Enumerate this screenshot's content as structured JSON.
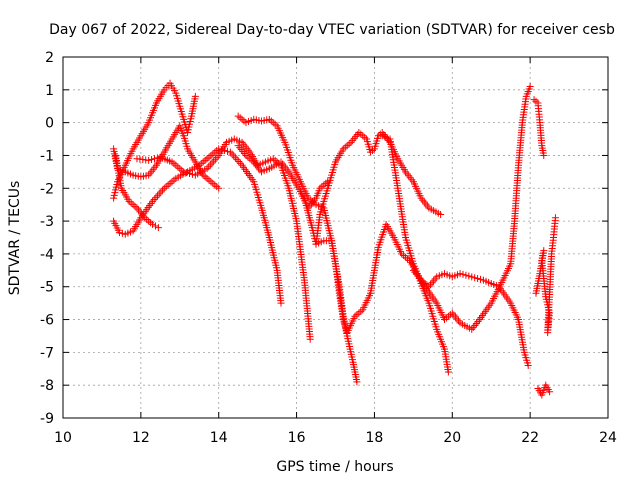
{
  "chart_data": {
    "type": "scatter",
    "title": "Day 067 of 2022, Sidereal Day-to-day VTEC variation (SDTVAR) for receiver cesb",
    "xlabel": "GPS time / hours",
    "ylabel": "SDTVAR / TECUs",
    "xlim": [
      10,
      24
    ],
    "ylim": [
      -9,
      2
    ],
    "xticks": [
      "10",
      "12",
      "14",
      "16",
      "18",
      "20",
      "22",
      "24"
    ],
    "yticks": [
      "2",
      "1",
      "0",
      "-1",
      "-2",
      "-3",
      "-4",
      "-5",
      "-6",
      "-7",
      "-8",
      "-9"
    ],
    "grid": true,
    "marker": "+",
    "color": "#ff0000",
    "series": [
      {
        "points": [
          [
            11.3,
            -2.3
          ],
          [
            11.4,
            -1.8
          ],
          [
            11.6,
            -1.3
          ],
          [
            11.8,
            -0.8
          ],
          [
            12.0,
            -0.4
          ],
          [
            12.2,
            0.0
          ],
          [
            12.4,
            0.6
          ],
          [
            12.6,
            1.0
          ],
          [
            12.75,
            1.2
          ],
          [
            12.9,
            0.9
          ],
          [
            13.0,
            0.5
          ],
          [
            13.1,
            0.1
          ],
          [
            13.2,
            -0.3
          ],
          [
            13.3,
            0.2
          ],
          [
            13.4,
            0.8
          ]
        ]
      },
      {
        "points": [
          [
            11.3,
            -0.8
          ],
          [
            11.4,
            -1.4
          ],
          [
            11.6,
            -1.5
          ],
          [
            11.8,
            -1.6
          ],
          [
            12.0,
            -1.65
          ],
          [
            12.2,
            -1.6
          ],
          [
            12.4,
            -1.3
          ],
          [
            12.6,
            -0.9
          ],
          [
            12.8,
            -0.5
          ],
          [
            13.0,
            -0.1
          ],
          [
            13.1,
            -0.4
          ],
          [
            13.2,
            -0.8
          ],
          [
            13.4,
            -1.2
          ],
          [
            13.6,
            -1.6
          ],
          [
            13.8,
            -1.8
          ],
          [
            14.0,
            -2.0
          ]
        ]
      },
      {
        "points": [
          [
            11.35,
            -1.0
          ],
          [
            11.5,
            -2.0
          ],
          [
            11.7,
            -2.4
          ],
          [
            11.9,
            -2.6
          ],
          [
            12.1,
            -2.9
          ],
          [
            12.3,
            -3.1
          ],
          [
            12.45,
            -3.2
          ]
        ]
      },
      {
        "points": [
          [
            11.3,
            -3.0
          ],
          [
            11.45,
            -3.35
          ],
          [
            11.6,
            -3.4
          ],
          [
            11.8,
            -3.3
          ],
          [
            12.0,
            -2.9
          ],
          [
            12.3,
            -2.4
          ],
          [
            12.6,
            -2.0
          ],
          [
            12.9,
            -1.7
          ],
          [
            13.2,
            -1.5
          ],
          [
            13.5,
            -1.3
          ],
          [
            13.8,
            -1.0
          ],
          [
            14.0,
            -0.8
          ],
          [
            14.3,
            -0.9
          ],
          [
            14.6,
            -1.3
          ],
          [
            14.9,
            -1.8
          ],
          [
            15.1,
            -2.6
          ],
          [
            15.3,
            -3.5
          ],
          [
            15.5,
            -4.5
          ],
          [
            15.6,
            -5.5
          ]
        ]
      },
      {
        "points": [
          [
            11.9,
            -1.1
          ],
          [
            12.2,
            -1.15
          ],
          [
            12.5,
            -1.05
          ],
          [
            12.8,
            -1.2
          ],
          [
            13.1,
            -1.5
          ],
          [
            13.4,
            -1.6
          ],
          [
            13.7,
            -1.4
          ],
          [
            14.0,
            -1.0
          ],
          [
            14.2,
            -0.6
          ],
          [
            14.4,
            -0.5
          ],
          [
            14.6,
            -0.6
          ],
          [
            14.8,
            -0.9
          ],
          [
            15.0,
            -1.3
          ],
          [
            15.2,
            -1.2
          ],
          [
            15.4,
            -1.1
          ],
          [
            15.6,
            -1.3
          ],
          [
            15.8,
            -2.0
          ],
          [
            16.0,
            -3.0
          ],
          [
            16.2,
            -4.8
          ],
          [
            16.35,
            -6.6
          ]
        ]
      },
      {
        "points": [
          [
            14.5,
            -0.7
          ],
          [
            14.7,
            -1.0
          ],
          [
            14.9,
            -1.2
          ],
          [
            15.1,
            -1.5
          ],
          [
            15.3,
            -1.4
          ],
          [
            15.6,
            -1.2
          ],
          [
            15.8,
            -1.5
          ],
          [
            16.0,
            -1.9
          ],
          [
            16.2,
            -2.3
          ],
          [
            16.4,
            -3.2
          ],
          [
            16.5,
            -3.7
          ],
          [
            16.6,
            -2.8
          ],
          [
            16.8,
            -2.0
          ],
          [
            17.0,
            -1.2
          ],
          [
            17.2,
            -0.8
          ],
          [
            17.4,
            -0.6
          ],
          [
            17.6,
            -0.3
          ],
          [
            17.8,
            -0.5
          ],
          [
            17.9,
            -0.9
          ],
          [
            18.0,
            -0.8
          ],
          [
            18.1,
            -0.4
          ],
          [
            18.2,
            -0.3
          ],
          [
            18.4,
            -0.6
          ],
          [
            18.6,
            -1.1
          ],
          [
            18.8,
            -1.5
          ],
          [
            19.0,
            -1.8
          ],
          [
            19.2,
            -2.3
          ],
          [
            19.4,
            -2.6
          ],
          [
            19.7,
            -2.8
          ]
        ]
      },
      {
        "points": [
          [
            14.5,
            0.2
          ],
          [
            14.7,
            0.0
          ],
          [
            14.9,
            0.1
          ],
          [
            15.1,
            0.05
          ],
          [
            15.3,
            0.1
          ],
          [
            15.5,
            -0.1
          ],
          [
            15.7,
            -0.6
          ],
          [
            15.9,
            -1.3
          ],
          [
            16.1,
            -1.8
          ],
          [
            16.3,
            -2.3
          ],
          [
            16.5,
            -2.5
          ],
          [
            16.7,
            -2.6
          ],
          [
            16.9,
            -3.6
          ],
          [
            17.1,
            -5.0
          ],
          [
            17.2,
            -5.9
          ],
          [
            17.3,
            -6.5
          ],
          [
            17.45,
            -7.3
          ],
          [
            17.55,
            -7.9
          ]
        ]
      },
      {
        "points": [
          [
            16.1,
            -2.1
          ],
          [
            16.3,
            -2.6
          ],
          [
            16.5,
            -2.3
          ],
          [
            16.6,
            -2.0
          ],
          [
            16.7,
            -1.9
          ],
          [
            16.8,
            -1.8
          ]
        ]
      },
      {
        "points": [
          [
            16.5,
            -3.7
          ],
          [
            16.7,
            -3.6
          ],
          [
            16.9,
            -3.6
          ],
          [
            17.0,
            -4.3
          ],
          [
            17.1,
            -5.2
          ],
          [
            17.2,
            -6.0
          ],
          [
            17.3,
            -6.4
          ],
          [
            17.5,
            -5.9
          ],
          [
            17.7,
            -5.7
          ],
          [
            17.9,
            -5.2
          ],
          [
            18.1,
            -3.8
          ],
          [
            18.3,
            -3.1
          ],
          [
            18.5,
            -3.5
          ],
          [
            18.7,
            -4.0
          ],
          [
            18.9,
            -4.2
          ],
          [
            19.1,
            -4.6
          ],
          [
            19.3,
            -5.0
          ],
          [
            19.6,
            -5.5
          ],
          [
            19.8,
            -6.0
          ],
          [
            20.0,
            -5.8
          ],
          [
            20.2,
            -6.1
          ],
          [
            20.5,
            -6.3
          ],
          [
            20.7,
            -6.0
          ],
          [
            21.0,
            -5.5
          ],
          [
            21.3,
            -4.8
          ],
          [
            21.5,
            -4.3
          ],
          [
            21.6,
            -3.0
          ],
          [
            21.7,
            -1.3
          ],
          [
            21.8,
            0.0
          ],
          [
            21.9,
            0.8
          ],
          [
            22.0,
            1.1
          ]
        ]
      },
      {
        "points": [
          [
            18.2,
            -0.4
          ],
          [
            18.4,
            -0.5
          ],
          [
            18.6,
            -2.0
          ],
          [
            18.8,
            -3.5
          ],
          [
            19.0,
            -4.3
          ],
          [
            19.2,
            -4.9
          ],
          [
            19.4,
            -5.5
          ],
          [
            19.6,
            -6.3
          ],
          [
            19.8,
            -6.9
          ],
          [
            19.9,
            -7.6
          ]
        ]
      },
      {
        "points": [
          [
            19.0,
            -4.5
          ],
          [
            19.2,
            -4.8
          ],
          [
            19.4,
            -5.0
          ],
          [
            19.6,
            -4.7
          ],
          [
            19.8,
            -4.6
          ],
          [
            20.0,
            -4.7
          ],
          [
            20.2,
            -4.6
          ],
          [
            20.5,
            -4.7
          ],
          [
            20.8,
            -4.8
          ],
          [
            21.0,
            -4.9
          ],
          [
            21.2,
            -5.0
          ],
          [
            21.5,
            -5.5
          ],
          [
            21.7,
            -6.0
          ],
          [
            21.85,
            -7.0
          ],
          [
            21.95,
            -7.4
          ]
        ]
      },
      {
        "points": [
          [
            22.1,
            0.7
          ],
          [
            22.2,
            0.6
          ],
          [
            22.25,
            0.0
          ],
          [
            22.3,
            -0.7
          ],
          [
            22.35,
            -1.0
          ],
          [
            22.2,
            -8.1
          ],
          [
            22.3,
            -8.3
          ],
          [
            22.4,
            -8.0
          ],
          [
            22.5,
            -8.2
          ],
          [
            22.15,
            -5.2
          ],
          [
            22.25,
            -4.6
          ],
          [
            22.35,
            -3.9
          ],
          [
            22.3,
            -4.2
          ],
          [
            22.4,
            -5.3
          ],
          [
            22.5,
            -5.8
          ],
          [
            22.45,
            -6.4
          ],
          [
            22.55,
            -4.0
          ],
          [
            22.6,
            -3.5
          ],
          [
            22.65,
            -2.9
          ]
        ]
      }
    ]
  }
}
